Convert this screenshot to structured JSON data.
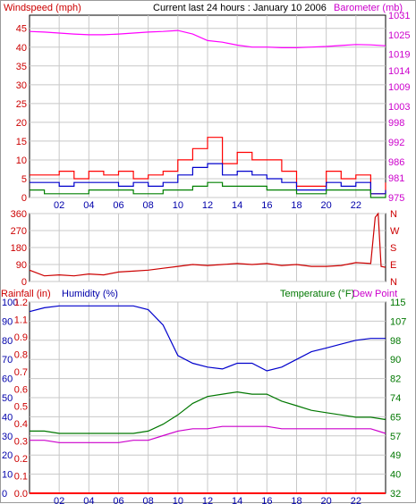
{
  "header": {
    "windspeed_label": "Windspeed (mph)",
    "title": "Current last 24 hours : January 10 2006",
    "barometer_label": "Barometer (mb)"
  },
  "panel3_header": {
    "rainfall_label": "Rainfall (in)",
    "humidity_label": "Humidity (%)",
    "temperature_label": "Temperature (°F)",
    "dewpoint_label": "Dew Point"
  },
  "colors": {
    "wind_max": "#ff0000",
    "wind_avg": "#0000cc",
    "wind_min": "#008000",
    "barometer": "#ff00ff",
    "direction": "#cc0000",
    "humidity": "#0000cc",
    "temperature": "#007700",
    "dewpoint": "#cc00cc",
    "rainfall": "#ff0000",
    "left_axis": "#cc0000",
    "right_axis": "#cc00cc",
    "humidity_axis": "#0000aa",
    "temp_axis": "#007700"
  },
  "chart_data": [
    {
      "type": "line",
      "name": "wind-barometer",
      "title": "Current last 24 hours : January 10 2006",
      "x_ticks": [
        "02",
        "04",
        "06",
        "08",
        "10",
        "12",
        "14",
        "16",
        "18",
        "20",
        "22"
      ],
      "xlim": [
        0,
        24
      ],
      "y_left_label": "Windspeed (mph)",
      "y_left_ticks": [
        "0",
        "5",
        "10",
        "15",
        "20",
        "25",
        "30",
        "35",
        "40",
        "45"
      ],
      "y_left_lim": [
        0,
        48.5
      ],
      "y_right_label": "Barometer (mb)",
      "y_right_ticks": [
        "975",
        "981",
        "986",
        "992",
        "998",
        "1003",
        "1009",
        "1014",
        "1019",
        "1025",
        "1031"
      ],
      "y_right_lim": [
        975,
        1031
      ],
      "grid": true,
      "series": [
        {
          "name": "Barometer",
          "axis": "right",
          "x": [
            0,
            1,
            2,
            3,
            4,
            5,
            6,
            7,
            8,
            9,
            10,
            11,
            12,
            13,
            14,
            15,
            16,
            17,
            18,
            19,
            20,
            21,
            22,
            23,
            24
          ],
          "values": [
            1026,
            1025.8,
            1025.5,
            1025.2,
            1025,
            1025,
            1025.2,
            1025.5,
            1025.8,
            1026,
            1026.3,
            1025.2,
            1023.2,
            1022.7,
            1021.8,
            1021.2,
            1021.2,
            1021,
            1021,
            1021.2,
            1021.4,
            1021.7,
            1022,
            1021.9,
            1021.6
          ]
        },
        {
          "name": "Wind max",
          "axis": "left",
          "x": [
            0,
            1,
            2,
            3,
            4,
            5,
            6,
            7,
            8,
            9,
            10,
            11,
            12,
            13,
            14,
            15,
            16,
            17,
            18,
            19,
            20,
            21,
            22,
            23,
            24
          ],
          "values": [
            6,
            6,
            7,
            5,
            7,
            6,
            7,
            5,
            6,
            7,
            10,
            13,
            16,
            9,
            12,
            10,
            10,
            7,
            3,
            3,
            7,
            5,
            6,
            1,
            4
          ]
        },
        {
          "name": "Wind avg",
          "axis": "left",
          "x": [
            0,
            1,
            2,
            3,
            4,
            5,
            6,
            7,
            8,
            9,
            10,
            11,
            12,
            13,
            14,
            15,
            16,
            17,
            18,
            19,
            20,
            21,
            22,
            23,
            24
          ],
          "values": [
            4,
            4,
            3,
            4,
            4,
            4,
            3,
            4,
            3,
            4,
            6,
            8,
            9,
            6,
            7,
            6,
            5,
            4,
            2,
            2,
            4,
            3,
            4,
            1,
            2
          ]
        },
        {
          "name": "Wind min",
          "axis": "left",
          "x": [
            0,
            1,
            2,
            3,
            4,
            5,
            6,
            7,
            8,
            9,
            10,
            11,
            12,
            13,
            14,
            15,
            16,
            17,
            18,
            19,
            20,
            21,
            22,
            23,
            24
          ],
          "values": [
            2,
            1,
            1,
            1,
            2,
            2,
            2,
            1,
            1,
            2,
            2,
            3,
            4,
            3,
            3,
            3,
            2,
            2,
            1,
            1,
            2,
            2,
            2,
            0,
            1
          ]
        }
      ]
    },
    {
      "type": "line",
      "name": "wind-direction",
      "xlim": [
        0,
        24
      ],
      "y_left_ticks": [
        "0",
        "90",
        "180",
        "270",
        "360"
      ],
      "y_left_lim": [
        0,
        360
      ],
      "y_right_ticks": [
        "N",
        "E",
        "S",
        "W",
        "N"
      ],
      "grid": true,
      "series": [
        {
          "name": "Direction",
          "x": [
            0,
            1,
            2,
            3,
            4,
            5,
            6,
            7,
            8,
            9,
            10,
            11,
            12,
            13,
            14,
            15,
            16,
            17,
            18,
            19,
            20,
            21,
            22,
            23,
            23.3,
            23.5,
            23.7,
            24
          ],
          "values": [
            60,
            30,
            35,
            30,
            40,
            35,
            50,
            55,
            60,
            70,
            80,
            90,
            85,
            90,
            95,
            90,
            95,
            85,
            90,
            80,
            80,
            85,
            100,
            95,
            340,
            360,
            80,
            75
          ]
        }
      ]
    },
    {
      "type": "line",
      "name": "humidity-temperature-rain",
      "xlim": [
        0,
        24
      ],
      "y_left_rain_label": "Rainfall (in)",
      "y_left_rain_ticks": [
        "0.0",
        "0.1",
        "0.2",
        "0.3",
        "0.4",
        "0.5",
        "0.6",
        "0.7",
        "0.8",
        "0.9",
        "1.1",
        "1.2"
      ],
      "y_left_hum_label": "Humidity (%)",
      "y_left_hum_ticks": [
        "0",
        "10",
        "20",
        "30",
        "40",
        "50",
        "60",
        "70",
        "80",
        "90",
        "100"
      ],
      "y_left_lim": [
        0,
        100
      ],
      "y_right_label": "Temperature (°F)",
      "y_right_ticks": [
        "32",
        "40",
        "49",
        "57",
        "65",
        "74",
        "82",
        "90",
        "98",
        "107",
        "115"
      ],
      "y_right_lim": [
        32,
        115
      ],
      "grid": true,
      "series": [
        {
          "name": "Humidity",
          "x": [
            0,
            1,
            2,
            3,
            4,
            5,
            6,
            7,
            8,
            9,
            10,
            11,
            12,
            13,
            14,
            15,
            16,
            17,
            18,
            19,
            20,
            21,
            22,
            23,
            24
          ],
          "values": [
            95,
            97,
            98,
            98,
            98,
            98,
            98,
            98,
            96,
            88,
            72,
            68,
            66,
            65,
            68,
            68,
            64,
            66,
            70,
            74,
            76,
            78,
            80,
            81,
            81
          ]
        },
        {
          "name": "Temperature",
          "x": [
            0,
            1,
            2,
            3,
            4,
            5,
            6,
            7,
            8,
            9,
            10,
            11,
            12,
            13,
            14,
            15,
            16,
            17,
            18,
            19,
            20,
            21,
            22,
            23,
            24
          ],
          "values": [
            59,
            59,
            58,
            58,
            58,
            58,
            58,
            58,
            59,
            62,
            66,
            71,
            74,
            75,
            76,
            75,
            75,
            72,
            70,
            68,
            67,
            66,
            65,
            65,
            64
          ]
        },
        {
          "name": "Dew Point",
          "x": [
            0,
            1,
            2,
            3,
            4,
            5,
            6,
            7,
            8,
            9,
            10,
            11,
            12,
            13,
            14,
            15,
            16,
            17,
            18,
            19,
            20,
            21,
            22,
            23,
            24
          ],
          "values": [
            55,
            55,
            54,
            54,
            54,
            54,
            54,
            55,
            55,
            57,
            59,
            60,
            60,
            61,
            61,
            61,
            61,
            60,
            60,
            60,
            60,
            60,
            60,
            60,
            58
          ]
        },
        {
          "name": "Rainfall",
          "x": [
            0,
            24
          ],
          "values": [
            0,
            0
          ]
        }
      ]
    }
  ]
}
